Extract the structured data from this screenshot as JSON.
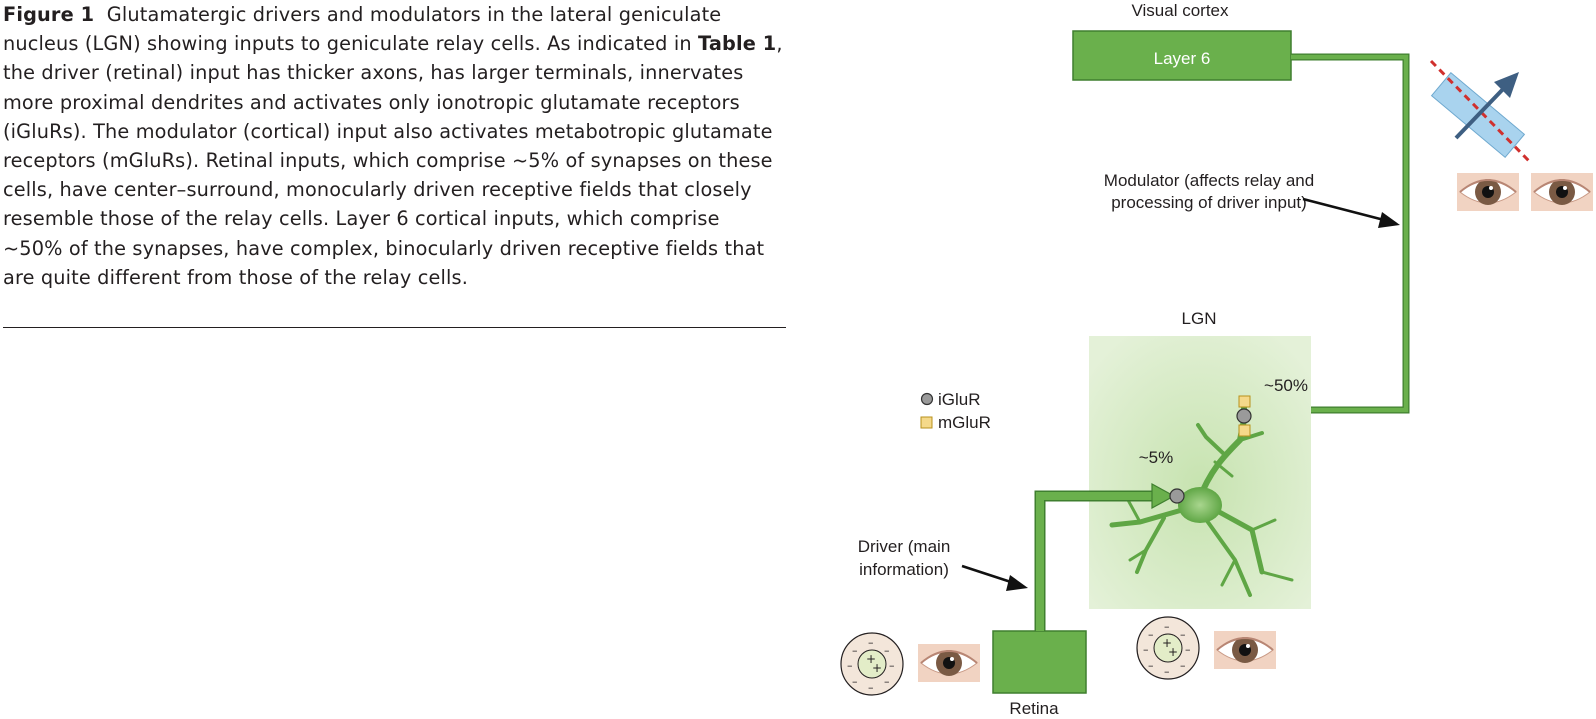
{
  "caption": {
    "figure_label": "Figure 1",
    "part1": "Glutamatergic drivers and modulators in the lateral geniculate nucleus (LGN) showing inputs to geniculate relay cells. As indicated in ",
    "table_ref": "Table 1",
    "part2": ", the driver (retinal) input has thicker axons, has larger terminals, innervates more proximal dendrites and activates only ionotropic glutamate receptors (iGluRs). The modulator (cortical) input also activates metabotropic glutamate receptors (mGluRs). Retinal inputs, which comprise ~5% of synapses on these cells, have center–surround, monocularly driven receptive fields that closely resemble those of the relay cells. Layer 6 cortical inputs, which comprise ~50% of the synapses, have complex, binocularly driven receptive fields that are quite different from those of the relay cells."
  },
  "diagram": {
    "visual_cortex_label": "Visual cortex",
    "layer6_label": "Layer 6",
    "modulator_label_line1": "Modulator (affects relay and",
    "modulator_label_line2": "processing of driver input)",
    "lgn_label": "LGN",
    "pct_cortical": "~50%",
    "pct_retinal": "~5%",
    "legend_iglur": "iGluR",
    "legend_mglur": "mGluR",
    "driver_label_line1": "Driver (main",
    "driver_label_line2": "information)",
    "retina_label": "Retina",
    "colors": {
      "pathway_green": "#6ab04c",
      "pathway_outline": "#3f7f2f",
      "lgn_box": "#d9ecc9",
      "iglur": "#9a9a9a",
      "mglur": "#f5d98a",
      "eye_skin": "#f1d3c2",
      "iris": "#7a5a44",
      "prism": "#a9d3ee",
      "dashed_red": "#d0302e",
      "arrow_blue": "#3e5f82"
    }
  }
}
